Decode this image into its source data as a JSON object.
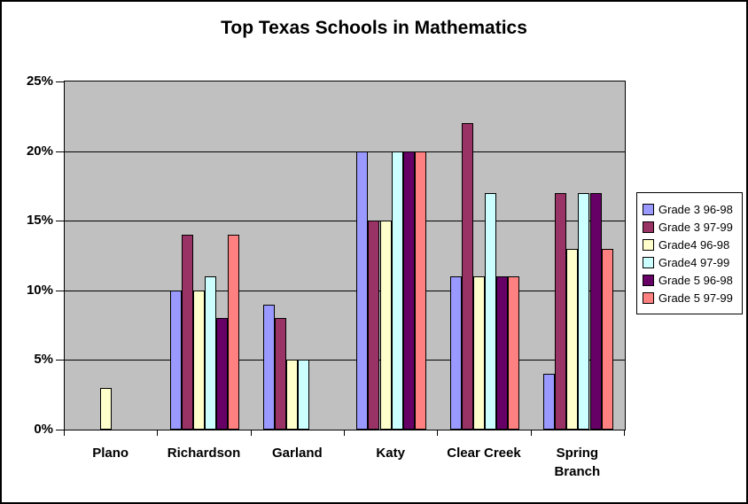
{
  "chart_data": {
    "type": "bar",
    "title": "Top Texas Schools in Mathematics",
    "categories": [
      "Plano",
      "Richardson",
      "Garland",
      "Katy",
      "Clear Creek",
      "Spring Branch"
    ],
    "x_display_labels": [
      "Plano",
      "Richardson",
      "Garland",
      "Katy",
      "Clear Creek",
      "Spring\nBranch"
    ],
    "series": [
      {
        "name": "Grade 3 96-98",
        "color": "#9999FF",
        "values": [
          0,
          10,
          9,
          20,
          11,
          4
        ]
      },
      {
        "name": "Grade 3 97-99",
        "color": "#993366",
        "values": [
          0,
          14,
          8,
          15,
          22,
          17
        ]
      },
      {
        "name": "Grade4 96-98",
        "color": "#FFFFCC",
        "values": [
          3,
          10,
          5,
          15,
          11,
          13
        ]
      },
      {
        "name": "Grade4 97-99",
        "color": "#CCFFFF",
        "values": [
          0,
          11,
          5,
          20,
          17,
          17
        ]
      },
      {
        "name": "Grade 5 96-98",
        "color": "#660066",
        "values": [
          0,
          8,
          0,
          20,
          11,
          17
        ]
      },
      {
        "name": "Grade 5 97-99",
        "color": "#FF8080",
        "values": [
          0,
          14,
          0,
          20,
          11,
          13
        ]
      }
    ],
    "xlabel": "",
    "ylabel": "",
    "ylim": [
      0,
      25
    ],
    "y_ticks": [
      "0%",
      "5%",
      "10%",
      "15%",
      "20%",
      "25%"
    ],
    "grid": true,
    "legend_position": "right",
    "plot_background": "#C0C0C0",
    "gridline_color": "#000000",
    "bar_border_color": "#000000",
    "outer_border_color": "#000000"
  }
}
